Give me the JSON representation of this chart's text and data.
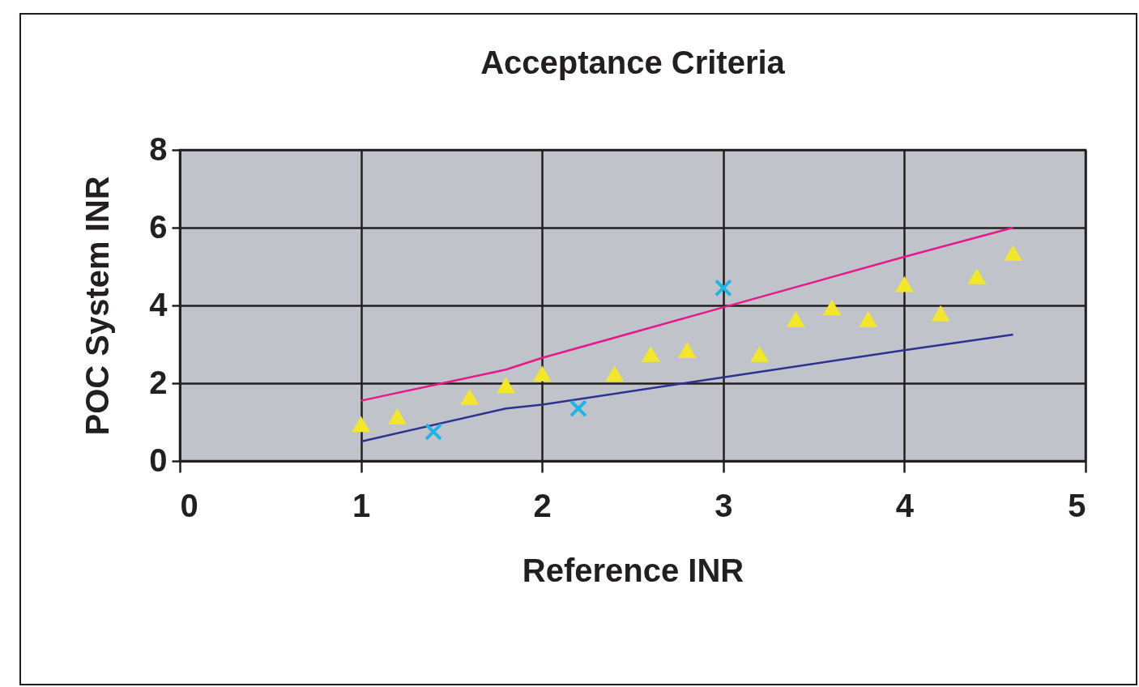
{
  "chart_data": {
    "type": "scatter",
    "title": "Acceptance Criteria",
    "xlabel": "Reference INR",
    "ylabel": "POC System INR",
    "xlim": [
      0,
      5
    ],
    "xticks": [
      0,
      1,
      2,
      3,
      4,
      5
    ],
    "ylim": [
      0,
      8
    ],
    "yticks": [
      0,
      2,
      4,
      6,
      8
    ],
    "grid": true,
    "series": [
      {
        "type": "line",
        "color": "#e6198c",
        "marker": "none",
        "x": [
          1,
          1.8,
          2,
          3,
          4,
          4.6
        ],
        "values": [
          1.55,
          2.35,
          2.65,
          3.95,
          5.25,
          6.0
        ]
      },
      {
        "type": "line",
        "color": "#2e3192",
        "marker": "none",
        "x": [
          1,
          1.8,
          2,
          3,
          4,
          4.6
        ],
        "values": [
          0.5,
          1.35,
          1.45,
          2.15,
          2.85,
          3.25
        ]
      },
      {
        "type": "scatter",
        "color": "#f2e829",
        "marker": "triangle",
        "x": [
          1,
          1.2,
          1.6,
          1.8,
          2,
          2.4,
          2.6,
          2.8,
          3.2,
          3.4,
          3.6,
          3.8,
          4,
          4.2,
          4.4,
          4.6
        ],
        "values": [
          0.95,
          1.15,
          1.65,
          1.95,
          2.25,
          2.25,
          2.75,
          2.85,
          2.75,
          3.65,
          3.95,
          3.65,
          4.55,
          3.8,
          4.75,
          5.35
        ]
      },
      {
        "type": "scatter",
        "color": "#1fb4e8",
        "marker": "cross",
        "x": [
          1.4,
          2.2,
          3
        ],
        "values": [
          0.75,
          1.35,
          4.45
        ]
      }
    ]
  }
}
